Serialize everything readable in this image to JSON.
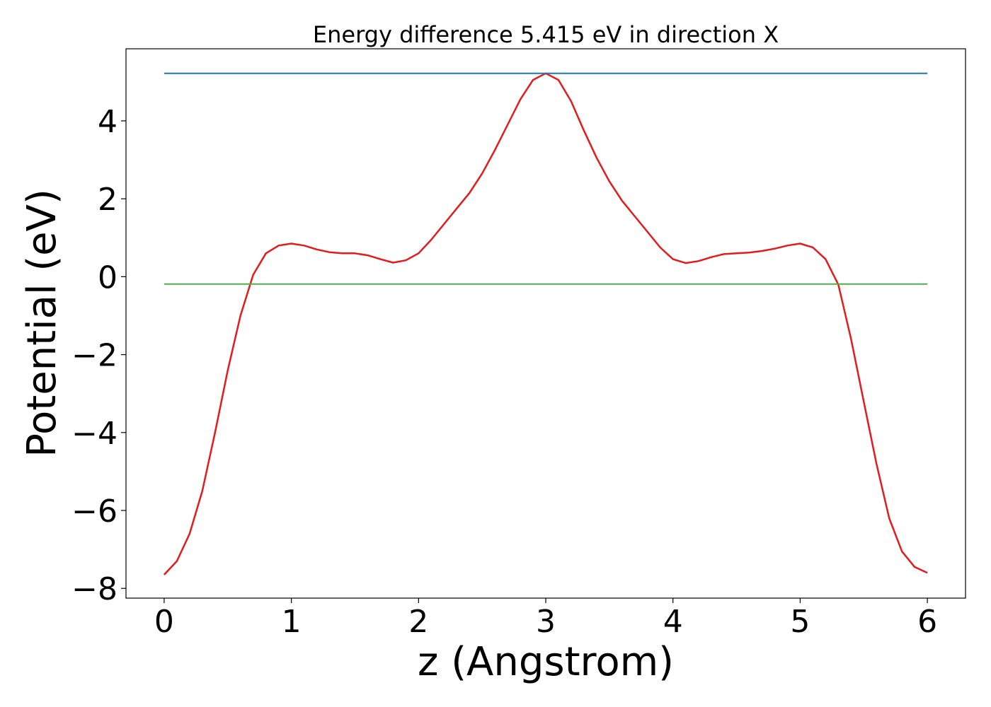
{
  "chart_data": {
    "type": "line",
    "title": "Energy difference 5.415 eV in direction X",
    "xlabel": "z (Angstrom)",
    "ylabel": "Potential (eV)",
    "xlim": [
      -0.3,
      6.3
    ],
    "ylim": [
      -8.25,
      5.85
    ],
    "xticks": [
      0,
      1,
      2,
      3,
      4,
      5,
      6
    ],
    "xtick_labels": [
      "0",
      "1",
      "2",
      "3",
      "4",
      "5",
      "6"
    ],
    "yticks": [
      -8,
      -6,
      -4,
      -2,
      0,
      2,
      4
    ],
    "ytick_labels": [
      "−8",
      "−6",
      "−4",
      "−2",
      "0",
      "2",
      "4"
    ],
    "grid": false,
    "series": [
      {
        "color": "#e41a1c",
        "x": [
          0,
          0.1,
          0.2,
          0.3,
          0.4,
          0.5,
          0.6,
          0.7,
          0.8,
          0.9,
          1.0,
          1.1,
          1.2,
          1.3,
          1.4,
          1.5,
          1.6,
          1.7,
          1.8,
          1.9,
          2.0,
          2.1,
          2.2,
          2.3,
          2.4,
          2.5,
          2.6,
          2.7,
          2.8,
          2.9,
          3.0,
          3.1,
          3.2,
          3.3,
          3.4,
          3.5,
          3.6,
          3.7,
          3.8,
          3.9,
          4.0,
          4.1,
          4.2,
          4.3,
          4.4,
          4.5,
          4.6,
          4.7,
          4.8,
          4.9,
          5.0,
          5.1,
          5.2,
          5.3,
          5.4,
          5.5,
          5.6,
          5.7,
          5.8,
          5.9,
          6.0
        ],
        "y": [
          -7.65,
          -7.3,
          -6.6,
          -5.5,
          -4.0,
          -2.4,
          -1.0,
          0.05,
          0.6,
          0.8,
          0.85,
          0.8,
          0.7,
          0.63,
          0.6,
          0.6,
          0.55,
          0.45,
          0.36,
          0.42,
          0.6,
          0.95,
          1.35,
          1.75,
          2.15,
          2.65,
          3.25,
          3.9,
          4.55,
          5.05,
          5.22,
          5.05,
          4.5,
          3.75,
          3.05,
          2.45,
          1.95,
          1.55,
          1.15,
          0.75,
          0.45,
          0.35,
          0.4,
          0.5,
          0.58,
          0.6,
          0.62,
          0.66,
          0.72,
          0.8,
          0.85,
          0.75,
          0.45,
          -0.2,
          -1.6,
          -3.2,
          -4.8,
          -6.2,
          -7.05,
          -7.45,
          -7.6
        ]
      },
      {
        "color": "#1f77b4",
        "x": [
          0,
          6
        ],
        "y": [
          5.22,
          5.22
        ]
      },
      {
        "color": "#4daf4a",
        "x": [
          0,
          6
        ],
        "y": [
          -0.19,
          -0.19
        ]
      }
    ]
  }
}
